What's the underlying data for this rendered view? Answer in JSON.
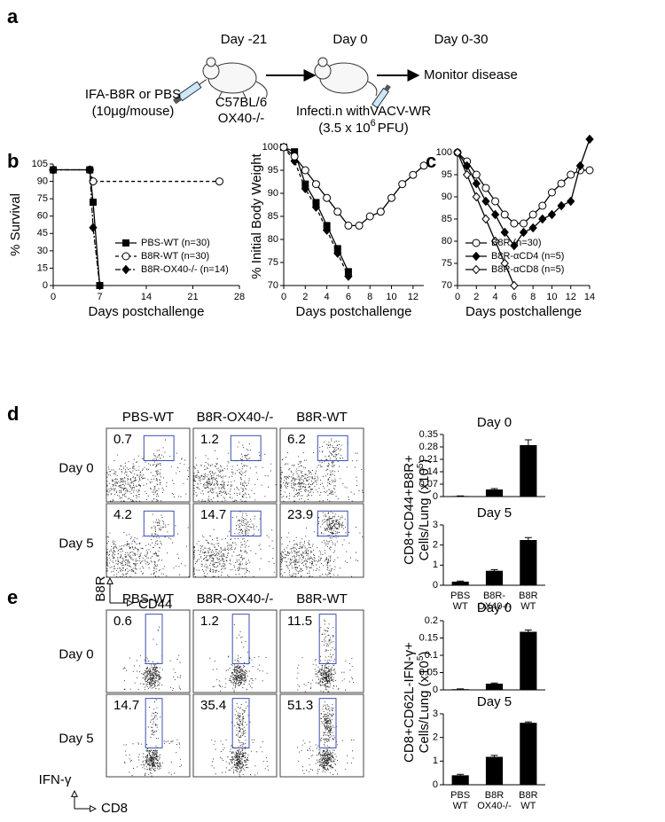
{
  "panel_labels": [
    "a",
    "b",
    "c",
    "d",
    "e"
  ],
  "schematic": {
    "timepoints": [
      "Day -21",
      "Day 0",
      "Day 0-30"
    ],
    "immunization": [
      "IFA-B8R or PBS",
      "(10μg/mouse)"
    ],
    "mouse": [
      "C57BL/6",
      "OX40-/-"
    ],
    "infection": "Infecti.n withVACV-WR",
    "dose": [
      "(3.5 x 10",
      "6",
      "PFU)"
    ],
    "outcome": "Monitor disease"
  },
  "flow": [
    {
      "columns": [
        "PBS-WT",
        "B8R-OX40-/-",
        "B8R-WT"
      ],
      "rows": [
        "Day 0",
        "Day 5"
      ],
      "gates": [
        [
          0.7,
          1.2,
          6.2
        ],
        [
          4.2,
          14.7,
          23.9
        ]
      ],
      "yaxis": "B8R",
      "xaxis": "CD44"
    },
    {
      "columns": [
        "PBS-WT",
        "B8R-OX40-/-",
        "B8R-WT"
      ],
      "rows": [
        "Day 0",
        "Day 5"
      ],
      "gates": [
        [
          0.6,
          1.2,
          11.5
        ],
        [
          14.7,
          35.4,
          51.3
        ]
      ],
      "yaxis": "IFN-γ",
      "xaxis": "CD8"
    }
  ],
  "chart_data": [
    {
      "type": "line",
      "ylabel": "% Survival",
      "xlabel": "Days postchallenge",
      "xlim": [
        0,
        28
      ],
      "xticks": [
        0,
        7,
        14,
        21,
        28
      ],
      "ylim": [
        0,
        105
      ],
      "yticks": [
        0,
        15,
        30,
        45,
        60,
        75,
        90,
        105
      ],
      "legend": "lower right",
      "series": [
        {
          "name": "PBS-WT (n=30)",
          "color": "#000000",
          "marker": "square",
          "linestyle": "solid",
          "x": [
            0,
            5.5,
            6,
            7
          ],
          "values": [
            100,
            100,
            72,
            0
          ]
        },
        {
          "name": "B8R-WT (n=30)",
          "color": "#000000",
          "marker": "circle-open",
          "linestyle": "dashed",
          "x": [
            0,
            5.5,
            6,
            25
          ],
          "values": [
            100,
            100,
            90,
            90
          ]
        },
        {
          "name": "B8R-OX40-/- (n=14)",
          "color": "#000000",
          "marker": "diamond",
          "linestyle": "dashdot",
          "x": [
            0,
            5.5,
            6,
            7
          ],
          "values": [
            100,
            100,
            50,
            0
          ]
        }
      ]
    },
    {
      "type": "line",
      "ylabel": "% Initial Body Weight",
      "xlabel": "Days postchallenge",
      "xlim": [
        0,
        13
      ],
      "xticks": [
        0,
        2,
        4,
        6,
        8,
        10,
        12
      ],
      "ylim": [
        70,
        100
      ],
      "yticks": [
        70,
        75,
        80,
        85,
        90,
        95,
        100
      ],
      "series": [
        {
          "color": "#000000",
          "marker": "square",
          "linestyle": "solid",
          "x": [
            0,
            1,
            2,
            3,
            4,
            5,
            6
          ],
          "values": [
            100,
            99,
            92,
            88,
            83,
            78,
            73
          ]
        },
        {
          "color": "#000000",
          "marker": "diamond",
          "linestyle": "dashed",
          "x": [
            0,
            1,
            2,
            3,
            4,
            5,
            6
          ],
          "values": [
            100,
            97,
            91,
            87,
            82,
            77,
            72
          ]
        },
        {
          "color": "#000000",
          "marker": "circle-open",
          "linestyle": "solid",
          "x": [
            0,
            1,
            2,
            3,
            4,
            5,
            6,
            7,
            8,
            9,
            10,
            11,
            12,
            13
          ],
          "values": [
            100,
            98,
            95,
            92,
            89,
            86,
            83,
            83,
            85,
            86,
            89,
            92,
            94,
            96
          ]
        }
      ]
    },
    {
      "type": "line",
      "xlabel": "Days postchallenge",
      "xlim": [
        0,
        14
      ],
      "xticks": [
        0,
        2,
        4,
        6,
        8,
        10,
        12,
        14
      ],
      "ylim": [
        70,
        100
      ],
      "yticks": [
        70,
        75,
        80,
        85,
        90,
        95,
        100
      ],
      "legend": "lower right",
      "series": [
        {
          "name": "B8R (n=30)",
          "color": "#000000",
          "marker": "circle-open",
          "linestyle": "solid",
          "x": [
            0,
            1,
            2,
            3,
            4,
            5,
            6,
            7,
            8,
            9,
            10,
            11,
            12,
            13,
            14
          ],
          "values": [
            100,
            98,
            95,
            92,
            89,
            86,
            84,
            84,
            86,
            88,
            91,
            93,
            95,
            96,
            96
          ]
        },
        {
          "name": "B8R-αCD4 (n=5)",
          "color": "#000000",
          "marker": "diamond",
          "linestyle": "solid",
          "x": [
            0,
            1,
            2,
            3,
            4,
            5,
            6,
            7,
            8,
            9,
            10,
            11,
            12,
            13,
            14
          ],
          "values": [
            100,
            97,
            93,
            89,
            86,
            82,
            79,
            82,
            83,
            85,
            86,
            88,
            89,
            97,
            103
          ]
        },
        {
          "name": "B8R-αCD8 (n=5)",
          "color": "#000000",
          "marker": "diamond-open",
          "linestyle": "solid",
          "x": [
            0,
            1,
            2,
            3,
            4,
            5,
            6
          ],
          "values": [
            100,
            95,
            90,
            85,
            80,
            75,
            70
          ]
        }
      ]
    },
    {
      "type": "bar",
      "title": "Day 0",
      "ylabel": [
        "CD8+CD44+B8R+",
        "Cells/Lung (x10",
        "5",
        ")"
      ],
      "categories": [
        null,
        null,
        null
      ],
      "values": [
        0.003,
        0.04,
        0.29
      ],
      "errors": [
        0.001,
        0.005,
        0.03
      ],
      "color": "#000000",
      "ylim": [
        0,
        0.35
      ],
      "yticks": [
        0,
        0.07,
        0.14,
        0.21,
        0.28,
        0.35
      ]
    },
    {
      "type": "bar",
      "title": "Day 5",
      "categories": [
        [
          "PBS",
          "WT"
        ],
        [
          "B8R-",
          "OX40-/-"
        ],
        [
          "B8R",
          "WT"
        ]
      ],
      "values": [
        0.18,
        0.72,
        2.25
      ],
      "errors": [
        0.03,
        0.06,
        0.12
      ],
      "color": "#000000",
      "ylim": [
        0,
        3
      ],
      "yticks": [
        0,
        1,
        2,
        3
      ]
    },
    {
      "type": "bar",
      "title": "Day 0",
      "ylabel": [
        "CD8+CD62L-IFN-γ+",
        "Cells/Lung (x10",
        "5",
        ")"
      ],
      "categories": [
        null,
        null,
        null
      ],
      "values": [
        0.002,
        0.018,
        0.168
      ],
      "errors": [
        0.001,
        0.002,
        0.005
      ],
      "color": "#000000",
      "ylim": [
        0,
        0.2
      ],
      "yticks": [
        0,
        0.05,
        0.1,
        0.15,
        0.2
      ]
    },
    {
      "type": "bar",
      "title": "Day 5",
      "categories": [
        [
          "PBS",
          "WT"
        ],
        [
          "B8R",
          "OX40-/-"
        ],
        [
          "B8R",
          "WT"
        ]
      ],
      "values": [
        0.4,
        1.18,
        2.62
      ],
      "errors": [
        0.04,
        0.06,
        0.04
      ],
      "color": "#000000",
      "ylim": [
        0,
        3
      ],
      "yticks": [
        0,
        1,
        2,
        3
      ]
    }
  ]
}
